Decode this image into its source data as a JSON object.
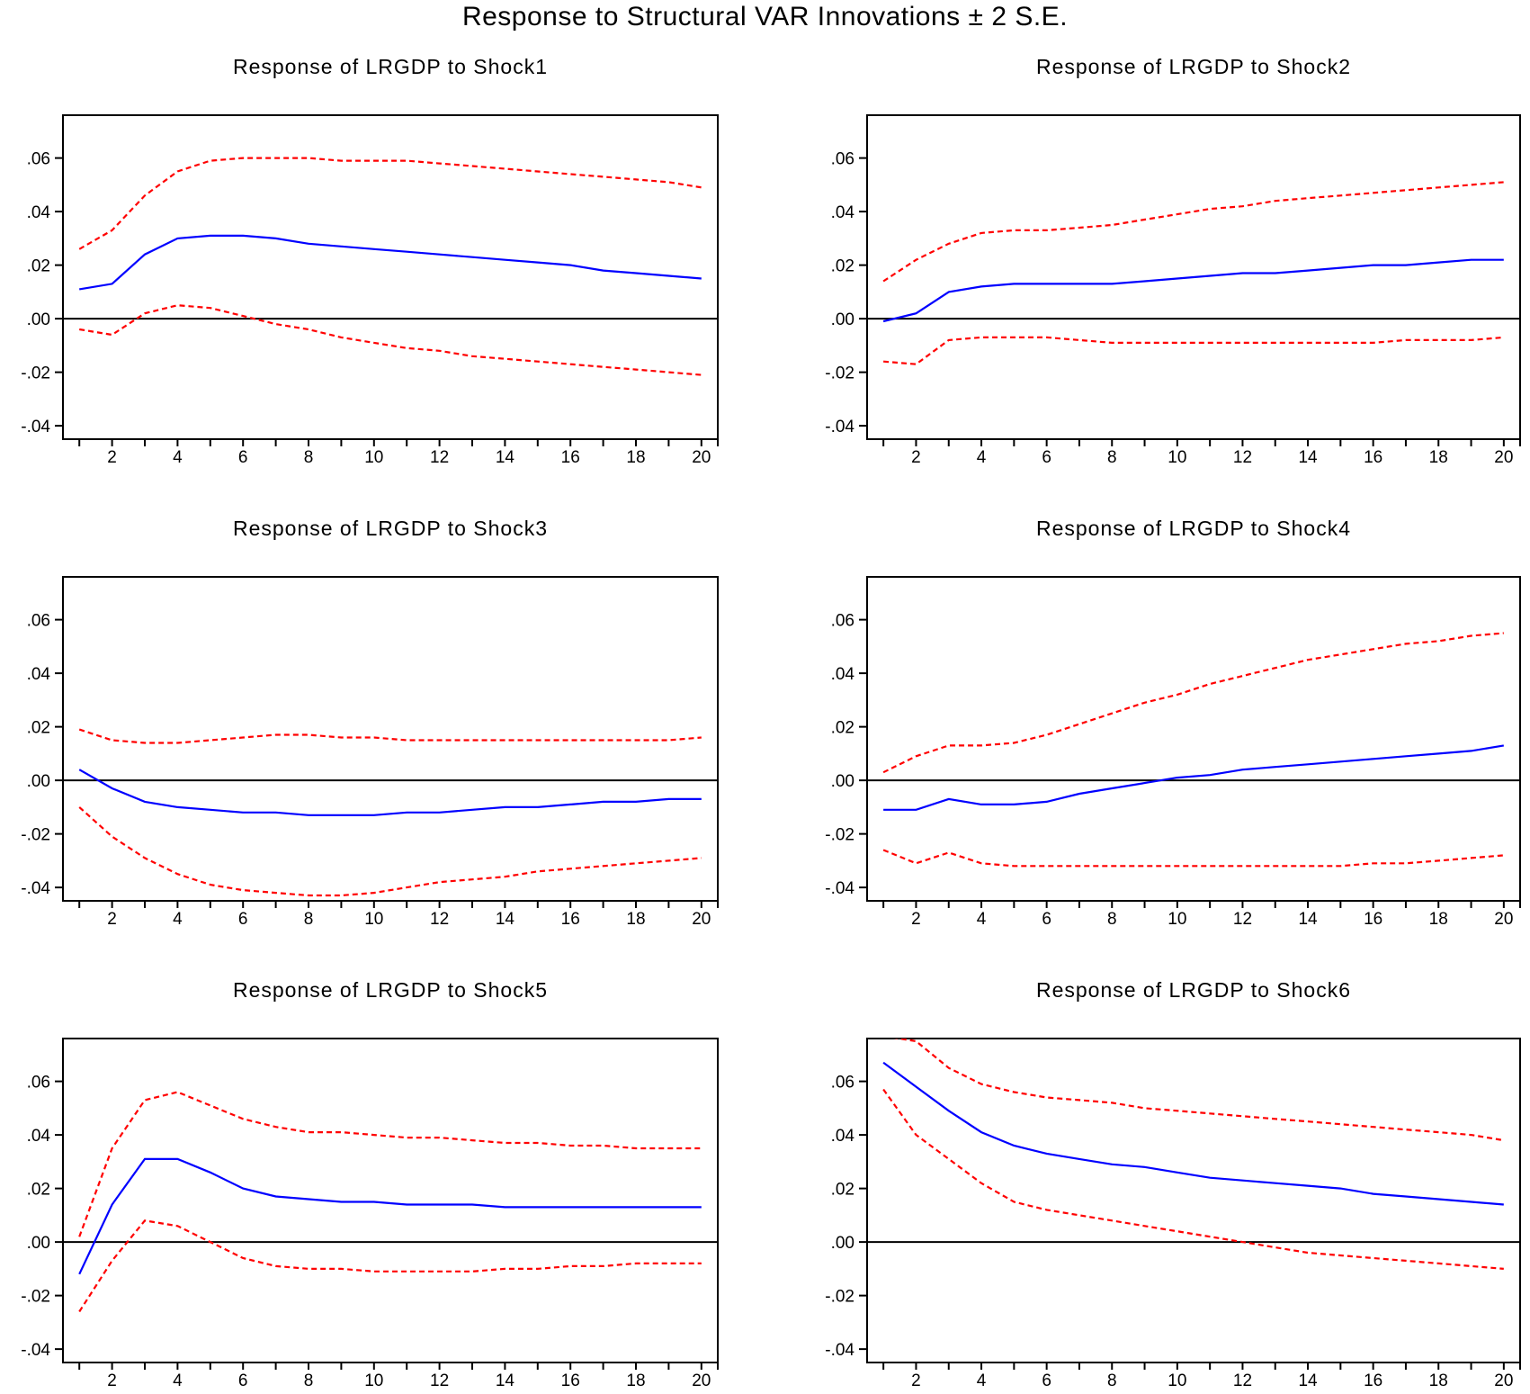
{
  "title": "Response to Structural VAR Innovations ± 2 S.E.",
  "colors": {
    "response": "#0000ff",
    "bands": "#ff0000",
    "axis": "#000000"
  },
  "chart_data": [
    {
      "type": "line",
      "title": "Response of LRGDP to Shock1",
      "x": [
        1,
        2,
        3,
        4,
        5,
        6,
        7,
        8,
        9,
        10,
        11,
        12,
        13,
        14,
        15,
        16,
        17,
        18,
        19,
        20
      ],
      "xticks": [
        2,
        4,
        6,
        8,
        10,
        12,
        14,
        16,
        18,
        20
      ],
      "yticks": [
        ".06",
        ".04",
        ".02",
        ".00",
        "-.02",
        "-.04"
      ],
      "ytick_values": [
        0.06,
        0.04,
        0.02,
        0.0,
        -0.02,
        -0.04
      ],
      "ylim": [
        -0.045,
        0.076
      ],
      "series": [
        {
          "role": "response",
          "style": "solid",
          "values": [
            0.011,
            0.013,
            0.024,
            0.03,
            0.031,
            0.031,
            0.03,
            0.028,
            0.027,
            0.026,
            0.025,
            0.024,
            0.023,
            0.022,
            0.021,
            0.02,
            0.018,
            0.017,
            0.016,
            0.015
          ]
        },
        {
          "role": "upper",
          "style": "dashed",
          "values": [
            0.026,
            0.033,
            0.046,
            0.055,
            0.059,
            0.06,
            0.06,
            0.06,
            0.059,
            0.059,
            0.059,
            0.058,
            0.057,
            0.056,
            0.055,
            0.054,
            0.053,
            0.052,
            0.051,
            0.049
          ]
        },
        {
          "role": "lower",
          "style": "dashed",
          "values": [
            -0.004,
            -0.006,
            0.002,
            0.005,
            0.004,
            0.001,
            -0.002,
            -0.004,
            -0.007,
            -0.009,
            -0.011,
            -0.012,
            -0.014,
            -0.015,
            -0.016,
            -0.017,
            -0.018,
            -0.019,
            -0.02,
            -0.021
          ]
        }
      ]
    },
    {
      "type": "line",
      "title": "Response of LRGDP to Shock2",
      "x": [
        1,
        2,
        3,
        4,
        5,
        6,
        7,
        8,
        9,
        10,
        11,
        12,
        13,
        14,
        15,
        16,
        17,
        18,
        19,
        20
      ],
      "xticks": [
        2,
        4,
        6,
        8,
        10,
        12,
        14,
        16,
        18,
        20
      ],
      "yticks": [
        ".06",
        ".04",
        ".02",
        ".00",
        "-.02",
        "-.04"
      ],
      "ytick_values": [
        0.06,
        0.04,
        0.02,
        0.0,
        -0.02,
        -0.04
      ],
      "ylim": [
        -0.045,
        0.076
      ],
      "series": [
        {
          "role": "response",
          "style": "solid",
          "values": [
            -0.001,
            0.002,
            0.01,
            0.012,
            0.013,
            0.013,
            0.013,
            0.013,
            0.014,
            0.015,
            0.016,
            0.017,
            0.017,
            0.018,
            0.019,
            0.02,
            0.02,
            0.021,
            0.022,
            0.022
          ]
        },
        {
          "role": "upper",
          "style": "dashed",
          "values": [
            0.014,
            0.022,
            0.028,
            0.032,
            0.033,
            0.033,
            0.034,
            0.035,
            0.037,
            0.039,
            0.041,
            0.042,
            0.044,
            0.045,
            0.046,
            0.047,
            0.048,
            0.049,
            0.05,
            0.051
          ]
        },
        {
          "role": "lower",
          "style": "dashed",
          "values": [
            -0.016,
            -0.017,
            -0.008,
            -0.007,
            -0.007,
            -0.007,
            -0.008,
            -0.009,
            -0.009,
            -0.009,
            -0.009,
            -0.009,
            -0.009,
            -0.009,
            -0.009,
            -0.009,
            -0.008,
            -0.008,
            -0.008,
            -0.007
          ]
        }
      ]
    },
    {
      "type": "line",
      "title": "Response of LRGDP to Shock3",
      "x": [
        1,
        2,
        3,
        4,
        5,
        6,
        7,
        8,
        9,
        10,
        11,
        12,
        13,
        14,
        15,
        16,
        17,
        18,
        19,
        20
      ],
      "xticks": [
        2,
        4,
        6,
        8,
        10,
        12,
        14,
        16,
        18,
        20
      ],
      "yticks": [
        ".06",
        ".04",
        ".02",
        ".00",
        "-.02",
        "-.04"
      ],
      "ytick_values": [
        0.06,
        0.04,
        0.02,
        0.0,
        -0.02,
        -0.04
      ],
      "ylim": [
        -0.045,
        0.076
      ],
      "series": [
        {
          "role": "response",
          "style": "solid",
          "values": [
            0.004,
            -0.003,
            -0.008,
            -0.01,
            -0.011,
            -0.012,
            -0.012,
            -0.013,
            -0.013,
            -0.013,
            -0.012,
            -0.012,
            -0.011,
            -0.01,
            -0.01,
            -0.009,
            -0.008,
            -0.008,
            -0.007,
            -0.007
          ]
        },
        {
          "role": "upper",
          "style": "dashed",
          "values": [
            0.019,
            0.015,
            0.014,
            0.014,
            0.015,
            0.016,
            0.017,
            0.017,
            0.016,
            0.016,
            0.015,
            0.015,
            0.015,
            0.015,
            0.015,
            0.015,
            0.015,
            0.015,
            0.015,
            0.016
          ]
        },
        {
          "role": "lower",
          "style": "dashed",
          "values": [
            -0.01,
            -0.021,
            -0.029,
            -0.035,
            -0.039,
            -0.041,
            -0.042,
            -0.043,
            -0.043,
            -0.042,
            -0.04,
            -0.038,
            -0.037,
            -0.036,
            -0.034,
            -0.033,
            -0.032,
            -0.031,
            -0.03,
            -0.029
          ]
        }
      ]
    },
    {
      "type": "line",
      "title": "Response of LRGDP to Shock4",
      "x": [
        1,
        2,
        3,
        4,
        5,
        6,
        7,
        8,
        9,
        10,
        11,
        12,
        13,
        14,
        15,
        16,
        17,
        18,
        19,
        20
      ],
      "xticks": [
        2,
        4,
        6,
        8,
        10,
        12,
        14,
        16,
        18,
        20
      ],
      "yticks": [
        ".06",
        ".04",
        ".02",
        ".00",
        "-.02",
        "-.04"
      ],
      "ytick_values": [
        0.06,
        0.04,
        0.02,
        0.0,
        -0.02,
        -0.04
      ],
      "ylim": [
        -0.045,
        0.076
      ],
      "series": [
        {
          "role": "response",
          "style": "solid",
          "values": [
            -0.011,
            -0.011,
            -0.007,
            -0.009,
            -0.009,
            -0.008,
            -0.005,
            -0.003,
            -0.001,
            0.001,
            0.002,
            0.004,
            0.005,
            0.006,
            0.007,
            0.008,
            0.009,
            0.01,
            0.011,
            0.013
          ]
        },
        {
          "role": "upper",
          "style": "dashed",
          "values": [
            0.003,
            0.009,
            0.013,
            0.013,
            0.014,
            0.017,
            0.021,
            0.025,
            0.029,
            0.032,
            0.036,
            0.039,
            0.042,
            0.045,
            0.047,
            0.049,
            0.051,
            0.052,
            0.054,
            0.055
          ]
        },
        {
          "role": "lower",
          "style": "dashed",
          "values": [
            -0.026,
            -0.031,
            -0.027,
            -0.031,
            -0.032,
            -0.032,
            -0.032,
            -0.032,
            -0.032,
            -0.032,
            -0.032,
            -0.032,
            -0.032,
            -0.032,
            -0.032,
            -0.031,
            -0.031,
            -0.03,
            -0.029,
            -0.028
          ]
        }
      ]
    },
    {
      "type": "line",
      "title": "Response of LRGDP to Shock5",
      "x": [
        1,
        2,
        3,
        4,
        5,
        6,
        7,
        8,
        9,
        10,
        11,
        12,
        13,
        14,
        15,
        16,
        17,
        18,
        19,
        20
      ],
      "xticks": [
        2,
        4,
        6,
        8,
        10,
        12,
        14,
        16,
        18,
        20
      ],
      "yticks": [
        ".06",
        ".04",
        ".02",
        ".00",
        "-.02",
        "-.04"
      ],
      "ytick_values": [
        0.06,
        0.04,
        0.02,
        0.0,
        -0.02,
        -0.04
      ],
      "ylim": [
        -0.045,
        0.076
      ],
      "series": [
        {
          "role": "response",
          "style": "solid",
          "values": [
            -0.012,
            0.014,
            0.031,
            0.031,
            0.026,
            0.02,
            0.017,
            0.016,
            0.015,
            0.015,
            0.014,
            0.014,
            0.014,
            0.013,
            0.013,
            0.013,
            0.013,
            0.013,
            0.013,
            0.013
          ]
        },
        {
          "role": "upper",
          "style": "dashed",
          "values": [
            0.002,
            0.035,
            0.053,
            0.056,
            0.051,
            0.046,
            0.043,
            0.041,
            0.041,
            0.04,
            0.039,
            0.039,
            0.038,
            0.037,
            0.037,
            0.036,
            0.036,
            0.035,
            0.035,
            0.035
          ]
        },
        {
          "role": "lower",
          "style": "dashed",
          "values": [
            -0.026,
            -0.007,
            0.008,
            0.006,
            0.0,
            -0.006,
            -0.009,
            -0.01,
            -0.01,
            -0.011,
            -0.011,
            -0.011,
            -0.011,
            -0.01,
            -0.01,
            -0.009,
            -0.009,
            -0.008,
            -0.008,
            -0.008
          ]
        }
      ]
    },
    {
      "type": "line",
      "title": "Response of LRGDP to Shock6",
      "x": [
        1,
        2,
        3,
        4,
        5,
        6,
        7,
        8,
        9,
        10,
        11,
        12,
        13,
        14,
        15,
        16,
        17,
        18,
        19,
        20
      ],
      "xticks": [
        2,
        4,
        6,
        8,
        10,
        12,
        14,
        16,
        18,
        20
      ],
      "yticks": [
        ".06",
        ".04",
        ".02",
        ".00",
        "-.02",
        "-.04"
      ],
      "ytick_values": [
        0.06,
        0.04,
        0.02,
        0.0,
        -0.02,
        -0.04
      ],
      "ylim": [
        -0.045,
        0.076
      ],
      "series": [
        {
          "role": "response",
          "style": "solid",
          "values": [
            0.067,
            0.058,
            0.049,
            0.041,
            0.036,
            0.033,
            0.031,
            0.029,
            0.028,
            0.026,
            0.024,
            0.023,
            0.022,
            0.021,
            0.02,
            0.018,
            0.017,
            0.016,
            0.015,
            0.014
          ]
        },
        {
          "role": "upper",
          "style": "dashed",
          "values": [
            0.077,
            0.075,
            0.065,
            0.059,
            0.056,
            0.054,
            0.053,
            0.052,
            0.05,
            0.049,
            0.048,
            0.047,
            0.046,
            0.045,
            0.044,
            0.043,
            0.042,
            0.041,
            0.04,
            0.038
          ]
        },
        {
          "role": "lower",
          "style": "dashed",
          "values": [
            0.057,
            0.04,
            0.031,
            0.022,
            0.015,
            0.012,
            0.01,
            0.008,
            0.006,
            0.004,
            0.002,
            0.0,
            -0.002,
            -0.004,
            -0.005,
            -0.006,
            -0.007,
            -0.008,
            -0.009,
            -0.01
          ]
        }
      ]
    }
  ]
}
